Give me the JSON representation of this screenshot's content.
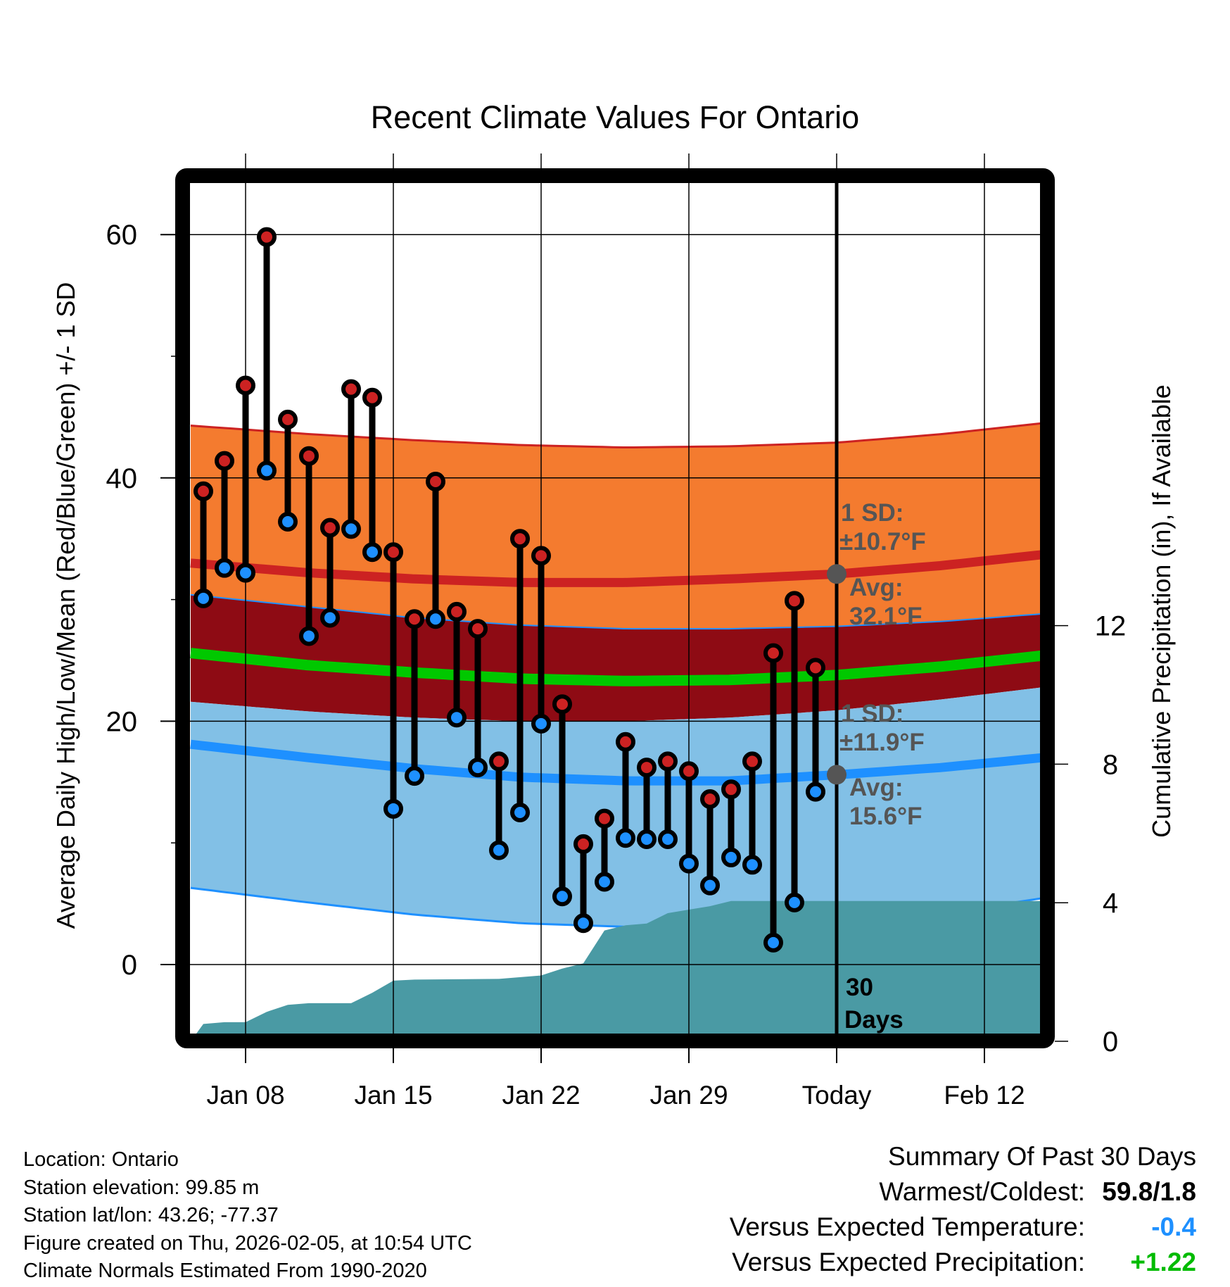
{
  "chart_data": {
    "type": "line",
    "title": "Recent Climate Values For Ontario",
    "xlabel": "Day",
    "ylabel": "Average Daily High/Low/Mean (Red/Blue/Green) +/- 1 SD",
    "y2label": "Cumulative Precipitation (in), If Available",
    "ylim": [
      -5.7,
      64.2
    ],
    "y_ticks": [
      0,
      20,
      40,
      60
    ],
    "y_minor_ticks": [
      10,
      30,
      50
    ],
    "y2lim": [
      0,
      18.3
    ],
    "y2_ticks": [
      0,
      4,
      8,
      12
    ],
    "x_ticks": [
      {
        "day_offset": 2,
        "label": "Jan 08"
      },
      {
        "day_offset": 9,
        "label": "Jan 15"
      },
      {
        "day_offset": 16,
        "label": "Jan 22"
      },
      {
        "day_offset": 23,
        "label": "Jan 29"
      },
      {
        "day_offset": 30,
        "label": "Today"
      },
      {
        "day_offset": 37,
        "label": "Feb 12"
      }
    ],
    "x_range_day_offsets": [
      -0.6,
      40.3
    ],
    "grid": true,
    "days": [
      "Jan 06",
      "Jan 07",
      "Jan 08",
      "Jan 09",
      "Jan 10",
      "Jan 11",
      "Jan 12",
      "Jan 13",
      "Jan 14",
      "Jan 15",
      "Jan 16",
      "Jan 17",
      "Jan 18",
      "Jan 19",
      "Jan 20",
      "Jan 21",
      "Jan 22",
      "Jan 23",
      "Jan 24",
      "Jan 25",
      "Jan 26",
      "Jan 27",
      "Jan 28",
      "Jan 29",
      "Jan 30",
      "Jan 31",
      "Feb 01",
      "Feb 02",
      "Feb 03",
      "Feb 04"
    ],
    "series": [
      {
        "name": "Daily High",
        "color": "#cc2222",
        "values": [
          38.9,
          41.4,
          47.6,
          59.8,
          44.8,
          41.8,
          35.9,
          47.3,
          46.6,
          33.9,
          28.4,
          39.7,
          29.0,
          27.6,
          16.7,
          35.0,
          33.6,
          21.4,
          9.9,
          12.0,
          18.3,
          16.2,
          16.7,
          15.9,
          13.6,
          14.4,
          16.7,
          25.6,
          29.9,
          24.4
        ]
      },
      {
        "name": "Daily Low",
        "color": "#1e90ff",
        "values": [
          30.1,
          32.6,
          32.2,
          40.6,
          36.4,
          27.0,
          28.5,
          35.8,
          33.9,
          12.8,
          15.5,
          28.4,
          20.3,
          16.2,
          9.4,
          12.5,
          19.8,
          5.6,
          3.4,
          6.8,
          10.4,
          10.3,
          10.3,
          8.3,
          6.5,
          8.8,
          8.2,
          1.8,
          5.1,
          14.2
        ]
      },
      {
        "name": "Cumulative Precipitation",
        "color": "#4a9aa4",
        "day_offsets": [
          -0.6,
          0,
          1,
          2,
          3,
          4,
          5,
          6,
          7,
          8,
          9,
          10,
          14,
          16,
          17,
          18,
          19,
          20,
          21,
          22,
          23,
          24,
          25,
          26,
          30,
          40.3
        ],
        "values": [
          0.0,
          0.5,
          0.55,
          0.55,
          0.85,
          1.05,
          1.1,
          1.1,
          1.1,
          1.4,
          1.75,
          1.78,
          1.8,
          1.9,
          2.1,
          2.25,
          3.2,
          3.35,
          3.4,
          3.7,
          3.8,
          3.9,
          4.05,
          4.05,
          4.05,
          4.05
        ]
      }
    ],
    "normals": {
      "day_offsets": [
        -0.6,
        5,
        10,
        15,
        20,
        25,
        30,
        35,
        40.3
      ],
      "high_mean": [
        33.0,
        32.2,
        31.7,
        31.4,
        31.4,
        31.7,
        32.1,
        32.8,
        33.8
      ],
      "high_upper": [
        44.3,
        43.6,
        43.1,
        42.7,
        42.5,
        42.6,
        42.9,
        43.6,
        44.6
      ],
      "high_lower": [
        30.4,
        29.4,
        28.5,
        27.9,
        27.6,
        27.6,
        27.8,
        28.2,
        28.9
      ],
      "mean": [
        25.6,
        24.6,
        24.0,
        23.5,
        23.3,
        23.4,
        23.8,
        24.5,
        25.5
      ],
      "low_upper": [
        21.6,
        20.8,
        20.3,
        20.0,
        20.0,
        20.3,
        20.9,
        21.8,
        22.9
      ],
      "low_mean": [
        18.1,
        17.0,
        16.1,
        15.4,
        15.1,
        15.1,
        15.6,
        16.2,
        17.1
      ],
      "low_lower": [
        6.3,
        5.1,
        4.1,
        3.4,
        3.1,
        3.1,
        3.4,
        4.2,
        5.6
      ],
      "colors": {
        "high_band": "#f47b2f",
        "high_line": "#cc2222",
        "mid_band": "#8e0b14",
        "mean_line": "#00c800",
        "low_band": "#82c0e6",
        "low_line": "#1e90ff",
        "precip": "#4a9aa4"
      }
    },
    "annotations": {
      "high": {
        "line1": "1 SD:",
        "line2": "±10.7°F",
        "line3": "Avg:",
        "line4": "32.1°F",
        "avg_value": 32.1
      },
      "low": {
        "line1": "1 SD:",
        "line2": "±11.9°F",
        "line3": "Avg:",
        "line4": "15.6°F",
        "avg_value": 15.6
      },
      "window": {
        "line1": "30",
        "line2": "Days"
      },
      "color": "#555555"
    }
  },
  "footer": {
    "location": "Location: Ontario",
    "elevation": "Station elevation: 99.85 m",
    "latlon": "Station lat/lon: 43.26; -77.37",
    "created": "Figure created on Thu, 2026-02-05, at 10:54 UTC",
    "normals": "Climate Normals Estimated From 1990-2020"
  },
  "summary": {
    "heading": "Summary Of Past 30 Days",
    "warmest_label": "Warmest/Coldest:",
    "warmest_value": "59.8/1.8",
    "temp_label": "Versus Expected Temperature:",
    "temp_value": "-0.4",
    "temp_color": "#1e90ff",
    "precip_label": "Versus Expected Precipitation:",
    "precip_value": "+1.22",
    "precip_color": "#00bb00"
  }
}
